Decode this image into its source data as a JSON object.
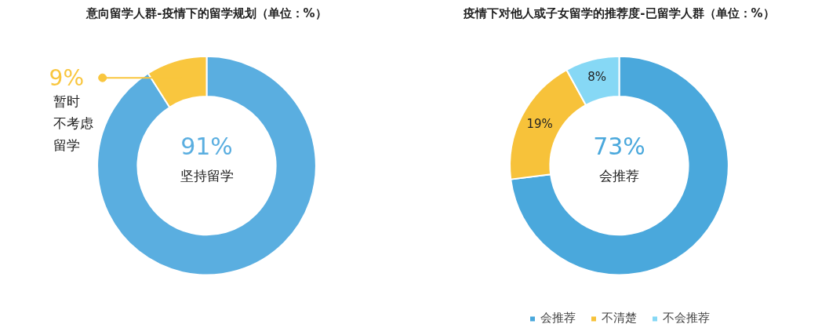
{
  "chart_data": [
    {
      "type": "donut",
      "title": "意向留学人群-疫情下的留学规划（单位：%）",
      "categories": [
        "坚持留学",
        "暂时不考虑留学"
      ],
      "values": [
        91,
        9
      ],
      "colors": [
        "#5aaee0",
        "#f9c63e"
      ],
      "value_labels": [
        "91%",
        "9%"
      ],
      "legend": "left"
    },
    {
      "type": "donut",
      "title": "疫情下对他人或子女留学的推荐度-已留学人群（单位：%）",
      "categories": [
        "会推荐",
        "不清楚",
        "不会推荐"
      ],
      "values": [
        73,
        19,
        8
      ],
      "colors": [
        "#4aa8dc",
        "#f7c23a",
        "#86d8f5"
      ],
      "value_labels": [
        "73%",
        "19%",
        "8%"
      ],
      "legend": "bottom"
    }
  ]
}
